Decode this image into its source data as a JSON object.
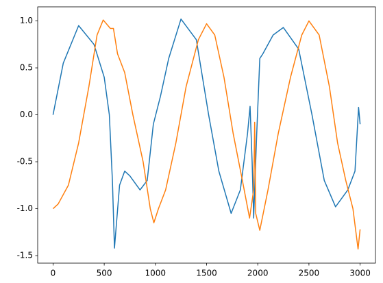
{
  "chart_data": {
    "type": "line",
    "series": [
      {
        "color": "#1f77b4",
        "x": [
          0,
          100,
          250,
          400,
          500,
          550,
          580,
          600,
          650,
          700,
          750,
          850,
          920,
          980,
          1050,
          1130,
          1250,
          1400,
          1520,
          1620,
          1740,
          1830,
          1900,
          1925,
          1945,
          1960,
          1990,
          2020,
          2050,
          2150,
          2250,
          2400,
          2530,
          2650,
          2760,
          2880,
          2950,
          2985,
          3000
        ],
        "values": [
          0,
          0.55,
          0.95,
          0.75,
          0.4,
          0,
          -0.7,
          -1.42,
          -0.75,
          -0.6,
          -0.65,
          -0.8,
          -0.7,
          -0.1,
          0.2,
          0.6,
          1.02,
          0.8,
          0,
          -0.6,
          -1.05,
          -0.8,
          -0.2,
          0.09,
          -0.5,
          -1.1,
          -0.2,
          0.6,
          0.65,
          0.85,
          0.93,
          0.7,
          0,
          -0.7,
          -0.98,
          -0.8,
          -0.6,
          0.08,
          -0.1
        ]
      },
      {
        "color": "#ff7f0e",
        "x": [
          0,
          50,
          150,
          250,
          350,
          430,
          490,
          560,
          590,
          630,
          700,
          780,
          880,
          950,
          985,
          1030,
          1100,
          1200,
          1300,
          1420,
          1500,
          1580,
          1670,
          1760,
          1850,
          1920,
          1960,
          1970,
          1980,
          2020,
          2100,
          2200,
          2320,
          2430,
          2500,
          2600,
          2700,
          2780,
          2860,
          2930,
          2980,
          3000
        ],
        "values": [
          -1.0,
          -0.95,
          -0.75,
          -0.3,
          0.3,
          0.85,
          1.01,
          0.92,
          0.92,
          0.65,
          0.45,
          0,
          -0.5,
          -1.0,
          -1.15,
          -1.0,
          -0.8,
          -0.3,
          0.3,
          0.8,
          0.97,
          0.85,
          0.4,
          -0.2,
          -0.7,
          -1.1,
          -0.8,
          -0.08,
          -1.05,
          -1.23,
          -0.8,
          -0.2,
          0.4,
          0.85,
          1.0,
          0.85,
          0.3,
          -0.3,
          -0.7,
          -1.0,
          -1.43,
          -1.22
        ]
      }
    ],
    "xlim": [
      -150,
      3150
    ],
    "ylim": [
      -1.58,
      1.15
    ],
    "xticks": [
      0,
      500,
      1000,
      1500,
      2000,
      2500,
      3000
    ],
    "yticks": [
      -1.5,
      {
        "value": -1.0,
        "label": "-1.0"
      },
      -0.5,
      {
        "value": 0.0,
        "label": "0.0"
      },
      0.5,
      {
        "value": 1.0,
        "label": "1.0"
      }
    ],
    "grid": false
  }
}
